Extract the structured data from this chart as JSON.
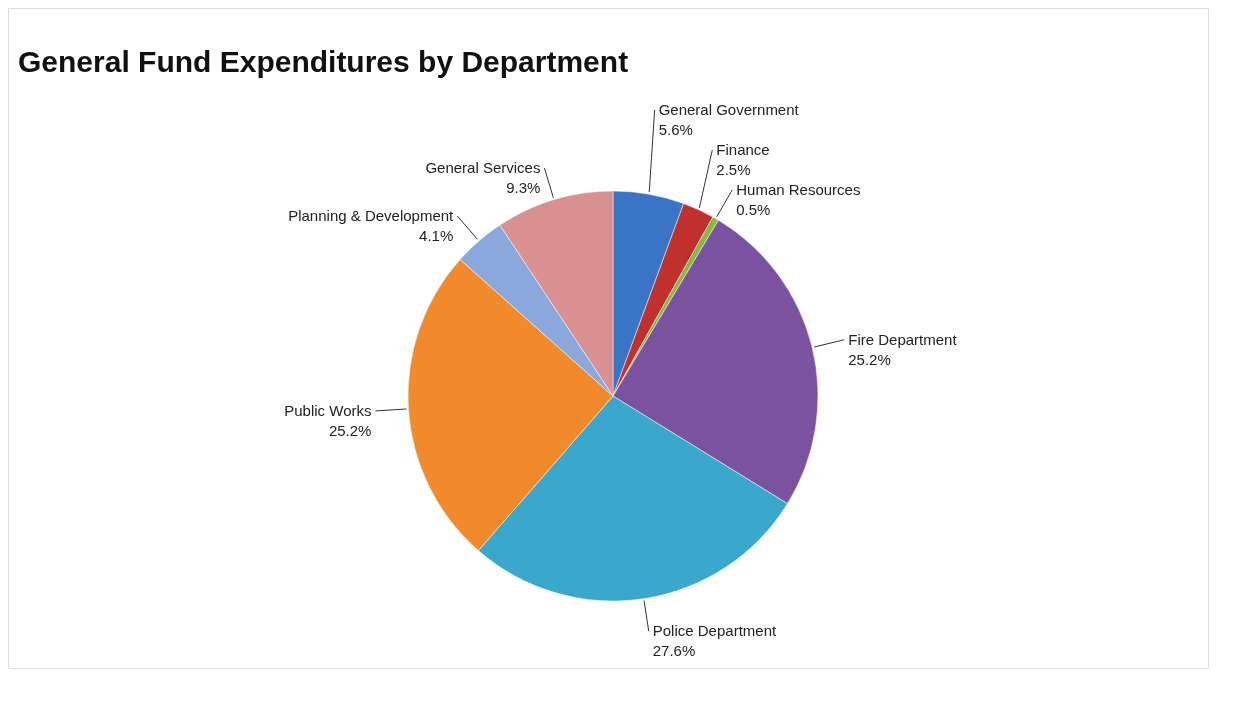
{
  "chart_data": {
    "type": "pie",
    "title": "General Fund Expenditures by Department",
    "categories": [
      "General Government",
      "Finance",
      "Human Resources",
      "Fire Department",
      "Police Department",
      "Public Works",
      "Planning & Development",
      "General Services"
    ],
    "values": [
      5.6,
      2.5,
      0.5,
      25.2,
      27.6,
      25.2,
      4.1,
      9.3
    ],
    "value_labels": [
      "5.6%",
      "2.5%",
      "0.5%",
      "25.2%",
      "27.6%",
      "25.2%",
      "4.1%",
      "9.3%"
    ],
    "colors": [
      "#3a74c4",
      "#c0302c",
      "#8ab83a",
      "#7a52a0",
      "#3aa8cc",
      "#f08a2a",
      "#8aa8dc",
      "#d89090"
    ],
    "legend": false
  }
}
